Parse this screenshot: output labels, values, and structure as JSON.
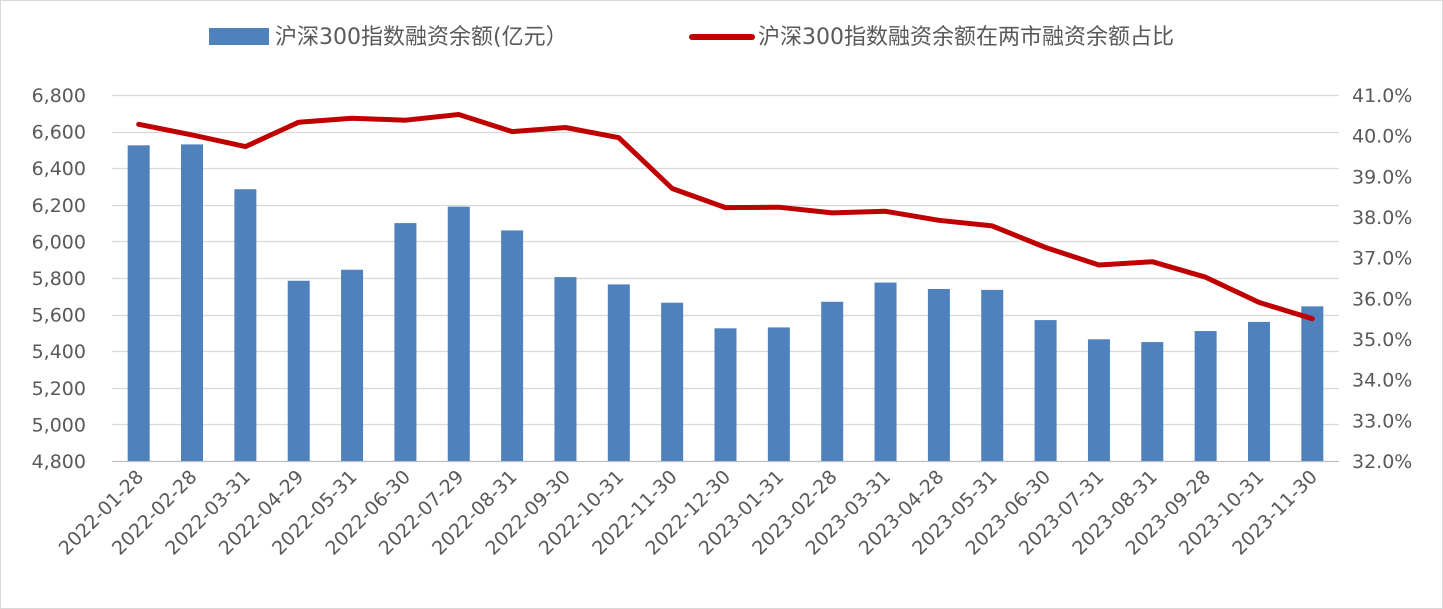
{
  "chart_data": {
    "type": "bar+line",
    "title": "",
    "legend_position": "top-center",
    "grid": true,
    "categories": [
      "2022-01-28",
      "2022-02-28",
      "2022-03-31",
      "2022-04-29",
      "2022-05-31",
      "2022-06-30",
      "2022-07-29",
      "2022-08-31",
      "2022-09-30",
      "2022-10-31",
      "2022-11-30",
      "2022-12-30",
      "2023-01-31",
      "2023-02-28",
      "2023-03-31",
      "2023-04-28",
      "2023-05-31",
      "2023-06-30",
      "2023-07-31",
      "2023-08-31",
      "2023-09-28",
      "2023-10-31",
      "2023-11-30"
    ],
    "series": [
      {
        "name": "沪深300指数融资余额(亿元）",
        "type": "bar",
        "axis": "left",
        "color": "#4f81bd",
        "values": [
          6525,
          6530,
          6285,
          5785,
          5845,
          6100,
          6190,
          6060,
          5805,
          5765,
          5665,
          5525,
          5530,
          5670,
          5775,
          5740,
          5735,
          5570,
          5465,
          5450,
          5510,
          5560,
          5645
        ]
      },
      {
        "name": "沪深300指数融资余额在两市融资余额占比",
        "type": "line",
        "axis": "right",
        "color": "#c00000",
        "values": [
          40.28,
          40.02,
          39.73,
          40.33,
          40.43,
          40.38,
          40.52,
          40.1,
          40.2,
          39.95,
          38.7,
          38.23,
          38.24,
          38.1,
          38.14,
          37.92,
          37.78,
          37.25,
          36.82,
          36.9,
          36.52,
          35.9,
          35.5
        ]
      }
    ],
    "left_axis": {
      "min": 4800,
      "max": 6800,
      "step": 200,
      "tick_labels": [
        "4,800",
        "5,000",
        "5,200",
        "5,400",
        "5,600",
        "5,800",
        "6,000",
        "6,200",
        "6,400",
        "6,600",
        "6,800"
      ]
    },
    "right_axis": {
      "min": 32,
      "max": 41,
      "step": 1,
      "tick_labels": [
        "32.0%",
        "33.0%",
        "34.0%",
        "35.0%",
        "36.0%",
        "37.0%",
        "38.0%",
        "39.0%",
        "40.0%",
        "41.0%"
      ]
    },
    "colors": {
      "text": "#595959",
      "grid": "#d9d9d9"
    }
  }
}
